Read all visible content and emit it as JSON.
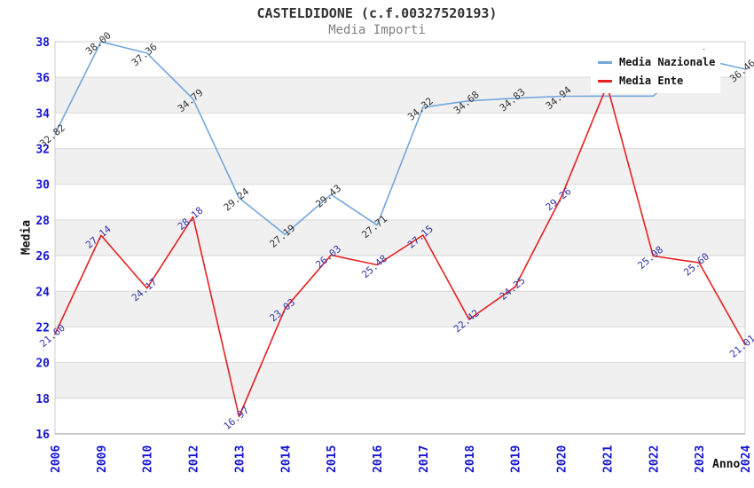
{
  "legend": {
    "items": [
      {
        "label": "Media Nazionale",
        "color": "#74a7dc"
      },
      {
        "label": "Media Ente",
        "color": "#e62020"
      }
    ]
  },
  "colors": {
    "tick_label": "#1515d0",
    "band": "#f0f0f0",
    "gridline": "#d9d9d9",
    "plot_border": "#cccccc",
    "axis_line": "#999999",
    "title": "#333333",
    "subtitle": "#808080"
  },
  "chart_data": {
    "type": "line",
    "title": "CASTELDIDONE (c.f.00327520193)",
    "subtitle": "Media Importi",
    "xlabel": "Anno",
    "ylabel": "Media",
    "ylim": [
      16,
      38
    ],
    "ytick_step": 2,
    "grid": "horizontal-bands",
    "legend_position": "top-right",
    "categories": [
      "2006",
      "2009",
      "2010",
      "2012",
      "2013",
      "2014",
      "2015",
      "2016",
      "2017",
      "2018",
      "2019",
      "2020",
      "2021",
      "2022",
      "2023",
      "2024"
    ],
    "series": [
      {
        "name": "Media Nazionale",
        "color": "#74a7dc",
        "label_color": "#333333",
        "values": [
          32.82,
          38.0,
          37.36,
          34.79,
          29.24,
          27.19,
          29.43,
          27.71,
          34.32,
          34.68,
          34.83,
          34.94,
          34.95,
          34.95,
          37.05,
          36.46
        ],
        "labels": [
          "32.82",
          "38.00",
          "37.36",
          "34.79",
          "29.24",
          "27.19",
          "29.43",
          "27.71",
          "34.32",
          "34.68",
          "34.83",
          "34.94",
          null,
          null,
          "37.05",
          "36.46"
        ]
      },
      {
        "name": "Media Ente",
        "color": "#e62020",
        "label_color": "#3333aa",
        "values": [
          21.6,
          27.14,
          24.17,
          28.18,
          16.97,
          23.03,
          26.03,
          25.48,
          27.15,
          22.42,
          24.25,
          29.26,
          35.55,
          25.98,
          25.6,
          21.01
        ],
        "labels": [
          "21.60",
          "27.14",
          "24.17",
          "28.18",
          "16.97",
          "23.03",
          "26.03",
          "25.48",
          "27.15",
          "22.42",
          "24.25",
          "29.26",
          null,
          "25.98",
          "25.60",
          "21.01"
        ]
      }
    ]
  }
}
